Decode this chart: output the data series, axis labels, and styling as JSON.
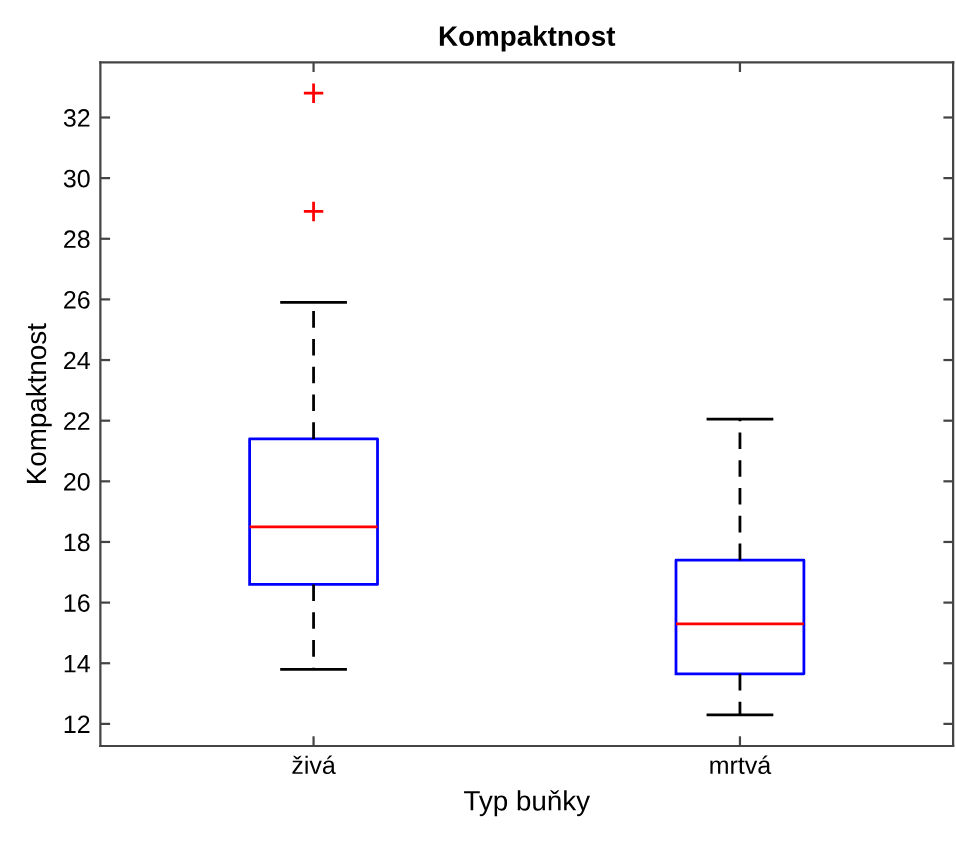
{
  "chart_data": {
    "type": "box",
    "title": "Kompaktnost",
    "xlabel": "Typ buňky",
    "ylabel": "Kompaktnost",
    "categories": [
      "živá",
      "mrtvá"
    ],
    "boxes": [
      {
        "low": 13.8,
        "q1": 16.6,
        "median": 18.5,
        "q3": 21.4,
        "high": 25.9,
        "outliers": [
          28.9,
          32.8
        ]
      },
      {
        "low": 12.3,
        "q1": 13.65,
        "median": 15.3,
        "q3": 17.4,
        "high": 22.05
      }
    ],
    "color": "#0000ff",
    "marker": "cross",
    "ylim": [
      11.27,
      33.82
    ],
    "yticks": [
      12,
      14,
      16,
      18,
      20,
      22,
      24,
      26,
      28,
      30,
      32
    ],
    "grid": false,
    "legend": false
  }
}
